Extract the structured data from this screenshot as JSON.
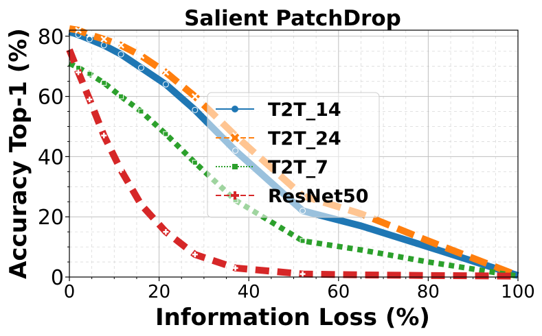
{
  "chart_data": {
    "type": "line",
    "title": "Salient PatchDrop",
    "xlabel": "Information Loss (%)",
    "ylabel": "Accuracy Top-1 (%)",
    "xlim": [
      0,
      100
    ],
    "ylim": [
      0,
      82
    ],
    "xticks": [
      "0",
      "20",
      "40",
      "60",
      "80",
      "100"
    ],
    "yticks": [
      "0",
      "20",
      "40",
      "60",
      "80"
    ],
    "grid": true,
    "legend_position": "center",
    "series": [
      {
        "name": "T2T_14",
        "color": "#1f77b4",
        "marker": "circle",
        "line_style": "solid",
        "x": [
          0,
          2,
          4.5,
          7.7,
          11.5,
          16,
          21.5,
          28,
          37,
          52,
          65,
          80,
          100
        ],
        "y": [
          81.5,
          80.5,
          79,
          77,
          74,
          69.5,
          64,
          55.5,
          42,
          22,
          17,
          10,
          0.5
        ]
      },
      {
        "name": "T2T_24",
        "color": "#ff7f0e",
        "marker": "x",
        "line_style": "dashed",
        "x": [
          0,
          2,
          4.5,
          7.7,
          11.5,
          16,
          21.5,
          28,
          37,
          52,
          65,
          80,
          100
        ],
        "y": [
          82.5,
          82,
          80.5,
          79,
          77,
          73.5,
          68,
          60,
          47,
          27,
          21,
          12,
          0.5
        ]
      },
      {
        "name": "T2T_7",
        "color": "#2ca02c",
        "marker": "square",
        "line_style": "dotted",
        "x": [
          0,
          2,
          4.5,
          7.7,
          11.5,
          16,
          21.5,
          28,
          37,
          52,
          65,
          80,
          100
        ],
        "y": [
          71,
          69.5,
          67.5,
          64.5,
          60,
          55,
          47.5,
          38,
          25.5,
          12,
          9,
          5,
          0.3
        ]
      },
      {
        "name": "ResNet50",
        "color": "#d62728",
        "marker": "plus",
        "line_style": "dashed",
        "x": [
          0,
          2,
          4.5,
          7.7,
          11.5,
          16,
          21.5,
          28,
          37,
          52,
          65,
          80,
          100
        ],
        "y": [
          75.5,
          68,
          59,
          47,
          35.5,
          24,
          15,
          7.5,
          3,
          1,
          0.7,
          0.5,
          0.3
        ]
      }
    ]
  }
}
